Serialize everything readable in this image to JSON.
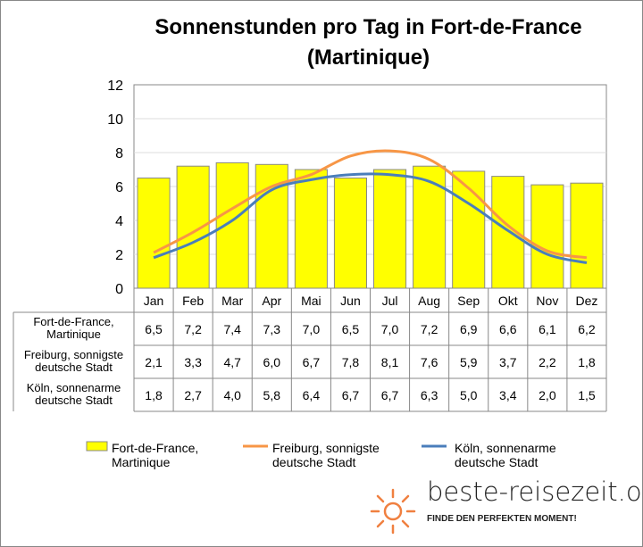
{
  "chart_data": {
    "type": "bar",
    "title": "Sonnenstunden pro Tag in Fort-de-France (Martinique)",
    "categories": [
      "Jan",
      "Feb",
      "Mar",
      "Apr",
      "Mai",
      "Jun",
      "Jul",
      "Aug",
      "Sep",
      "Okt",
      "Nov",
      "Dez"
    ],
    "ylim": [
      0,
      12
    ],
    "yticks": [
      0,
      2,
      4,
      6,
      8,
      10,
      12
    ],
    "grid": true,
    "legend": "bottom",
    "series": [
      {
        "name": "Fort-de-France, Martinique",
        "label_lines": [
          "Fort-de-France,",
          "Martinique"
        ],
        "type": "bar",
        "color": "#ffff00",
        "values": [
          6.5,
          7.2,
          7.4,
          7.3,
          7.0,
          6.5,
          7.0,
          7.2,
          6.9,
          6.6,
          6.1,
          6.2
        ],
        "display": [
          "6,5",
          "7,2",
          "7,4",
          "7,3",
          "7,0",
          "6,5",
          "7,0",
          "7,2",
          "6,9",
          "6,6",
          "6,1",
          "6,2"
        ]
      },
      {
        "name": "Freiburg, sonnigste deutsche Stadt",
        "label_lines": [
          "Freiburg, sonnigste",
          "deutsche Stadt"
        ],
        "type": "line",
        "color": "#f79646",
        "values": [
          2.1,
          3.3,
          4.7,
          6.0,
          6.7,
          7.8,
          8.1,
          7.6,
          5.9,
          3.7,
          2.2,
          1.8
        ],
        "display": [
          "2,1",
          "3,3",
          "4,7",
          "6,0",
          "6,7",
          "7,8",
          "8,1",
          "7,6",
          "5,9",
          "3,7",
          "2,2",
          "1,8"
        ]
      },
      {
        "name": "Köln, sonnenarme deutsche Stadt",
        "label_lines": [
          "Köln, sonnenarme",
          "deutsche Stadt"
        ],
        "type": "line",
        "color": "#4a7ebb",
        "values": [
          1.8,
          2.7,
          4.0,
          5.8,
          6.4,
          6.7,
          6.7,
          6.3,
          5.0,
          3.4,
          2.0,
          1.5
        ],
        "display": [
          "1,8",
          "2,7",
          "4,0",
          "5,8",
          "6,4",
          "6,7",
          "6,7",
          "6,3",
          "5,0",
          "3,4",
          "2,0",
          "1,5"
        ]
      }
    ]
  },
  "title_lines": [
    "Sonnenstunden pro Tag in Fort-de-France",
    "(Martinique)"
  ],
  "logo": {
    "name": "beste-reisezeit.org",
    "tagline": "FINDE DEN PERFEKTEN MOMENT!"
  }
}
